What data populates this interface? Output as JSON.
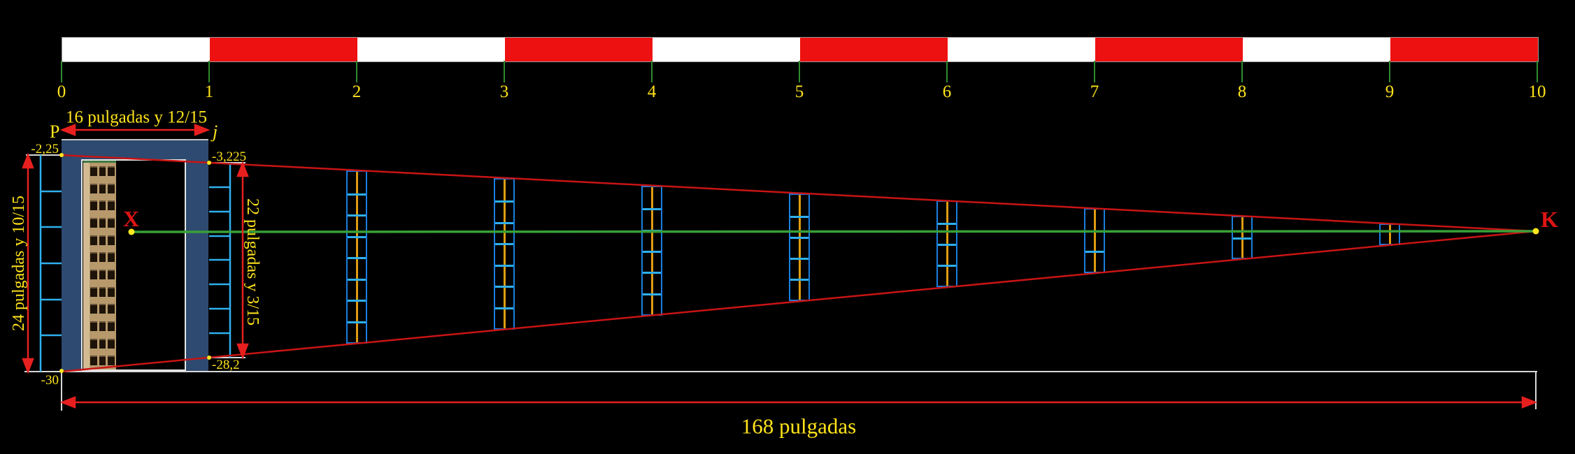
{
  "ruler": {
    "ticks": [
      "0",
      "1",
      "2",
      "3",
      "4",
      "5",
      "6",
      "7",
      "8",
      "9",
      "10"
    ],
    "segment_pattern": [
      "white",
      "red",
      "white",
      "red",
      "white",
      "red",
      "white",
      "red",
      "white",
      "red"
    ]
  },
  "labels": {
    "p": "P",
    "j": "j",
    "x": "X",
    "k": "K",
    "top_width": "16 pulgadas y 12/15",
    "left_height": "24 pulgadas y 10/15",
    "right_height": "22 pulgadas y 3/15",
    "bottom_width": "168 pulgadas",
    "top_left_value": "-2,25",
    "top_right_value": "-3,225",
    "bottom_right_value": "-28,2",
    "bottom_left_value": "-30"
  },
  "frames": [
    {
      "tick": 2,
      "segments": 8
    },
    {
      "tick": 3,
      "segments": 7
    },
    {
      "tick": 4,
      "segments": 6
    },
    {
      "tick": 5,
      "segments": 5
    },
    {
      "tick": 6,
      "segments": 4
    },
    {
      "tick": 7,
      "segments": 3
    },
    {
      "tick": 8,
      "segments": 2
    },
    {
      "tick": 9,
      "segments": 1
    }
  ],
  "photo": {
    "floors": 12,
    "windows_per_floor": 3
  },
  "colors": {
    "background": "#000000",
    "ruler_red": "#ee1111",
    "ruler_white": "#ffffff",
    "tick_green": "#2e8b2e",
    "label_yellow": "#ffe41a",
    "perspective_red": "#c81414",
    "arrow_red": "#e81f1f",
    "line_green": "#38a038",
    "frame_blue": "#1a7fe0",
    "rung_cyan": "#2fb0ee",
    "frame_center_orange": "#e09c10",
    "door_navy": "#2e4a70",
    "reference_white": "#d8d8d8",
    "dot_gold": "#ffe71e",
    "photo_tan": "#b7996c",
    "photo_window": "#1d1308"
  }
}
